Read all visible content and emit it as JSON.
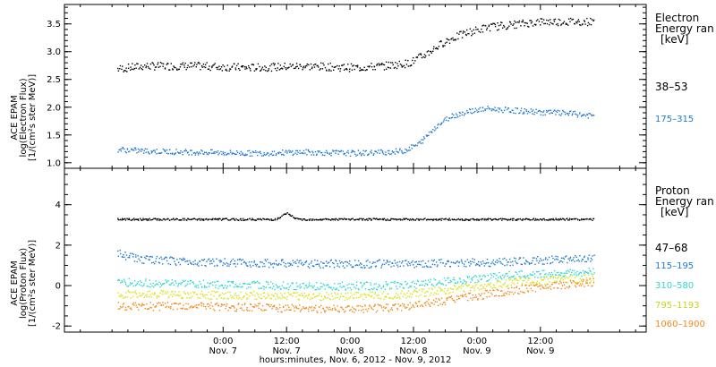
{
  "chart_data": [
    {
      "type": "scatter",
      "ylabel": [
        "ACE EPAM",
        "log(Electron Flux)",
        "[1/(cm²s ster MeV)]"
      ],
      "yticks": [
        "1.0",
        "1.5",
        "2.0",
        "2.5",
        "3.0",
        "3.5"
      ],
      "ylim": [
        0.9,
        3.85
      ],
      "legend": {
        "title": [
          "Electron",
          "Energy ran",
          "[keV]"
        ],
        "items": [
          {
            "label": "38–53",
            "color": "#000000"
          },
          {
            "label": "175–315",
            "color": "#1f77d0"
          }
        ]
      },
      "series": [
        {
          "name": "38–53",
          "color": "#000000",
          "x": [
            -20,
            -15,
            -5,
            5,
            15,
            25,
            30,
            35,
            38,
            42,
            46,
            50,
            55,
            60,
            65,
            70
          ],
          "y": [
            2.7,
            2.75,
            2.75,
            2.72,
            2.75,
            2.72,
            2.75,
            2.8,
            2.95,
            3.2,
            3.35,
            3.45,
            3.5,
            3.55,
            3.55,
            3.55
          ]
        },
        {
          "name": "175–315",
          "color": "#1f77d0",
          "x": [
            -20,
            -15,
            -5,
            5,
            15,
            25,
            30,
            34,
            37,
            40,
            43,
            47,
            50,
            55,
            60,
            65,
            70
          ],
          "y": [
            1.25,
            1.22,
            1.2,
            1.18,
            1.2,
            1.18,
            1.2,
            1.22,
            1.35,
            1.65,
            1.85,
            1.95,
            1.98,
            1.95,
            1.92,
            1.9,
            1.85
          ]
        }
      ]
    },
    {
      "type": "scatter",
      "ylabel": [
        "ACE EPAM",
        "log(Proton Flux)",
        "[1/(cm²s ster MeV)]"
      ],
      "yticks": [
        "-2",
        "0",
        "2",
        "4"
      ],
      "ylim": [
        -2.3,
        5.8
      ],
      "legend": {
        "title": [
          "Proton",
          "Energy ran",
          "[keV]"
        ],
        "items": [
          {
            "label": "47–68",
            "color": "#000000"
          },
          {
            "label": "115–195",
            "color": "#1f77d0"
          },
          {
            "label": "310–580",
            "color": "#2fd6d0"
          },
          {
            "label": "795–1193",
            "color": "#d9e21a"
          },
          {
            "label": "1060–1900",
            "color": "#f08a1c"
          }
        ]
      },
      "series": [
        {
          "name": "47–68",
          "color": "#000000",
          "x": [
            -20,
            0,
            10,
            12,
            14,
            30,
            50,
            70
          ],
          "y": [
            3.3,
            3.3,
            3.3,
            3.6,
            3.3,
            3.3,
            3.3,
            3.3
          ]
        },
        {
          "name": "115–195",
          "color": "#1f77d0",
          "x": [
            -20,
            -15,
            -5,
            5,
            15,
            25,
            35,
            45,
            55,
            65,
            70
          ],
          "y": [
            1.6,
            1.3,
            1.2,
            1.15,
            1.1,
            1.1,
            1.1,
            1.15,
            1.2,
            1.35,
            1.4
          ]
        },
        {
          "name": "310–580",
          "color": "#2fd6d0",
          "x": [
            -20,
            -15,
            -5,
            5,
            15,
            25,
            35,
            45,
            55,
            65,
            70
          ],
          "y": [
            0.2,
            0.15,
            0.1,
            0.05,
            0.0,
            0.0,
            0.05,
            0.3,
            0.55,
            0.65,
            0.7
          ]
        },
        {
          "name": "795–1193",
          "color": "#d9e21a",
          "x": [
            -20,
            -15,
            -5,
            5,
            15,
            25,
            35,
            45,
            55,
            65,
            70
          ],
          "y": [
            -0.4,
            -0.4,
            -0.45,
            -0.45,
            -0.5,
            -0.5,
            -0.4,
            -0.1,
            0.2,
            0.35,
            0.4
          ]
        },
        {
          "name": "1060–1900",
          "color": "#f08a1c",
          "x": [
            -20,
            -15,
            -5,
            5,
            15,
            25,
            35,
            45,
            55,
            65,
            70
          ],
          "y": [
            -1.0,
            -1.0,
            -1.0,
            -1.05,
            -1.1,
            -1.15,
            -1.0,
            -0.6,
            -0.2,
            0.1,
            0.2
          ]
        }
      ]
    }
  ],
  "xaxis": {
    "range_hours": [
      -30,
      80
    ],
    "ticks": [
      {
        "h": 0,
        "line1": "0:00",
        "line2": "Nov. 7"
      },
      {
        "h": 12,
        "line1": "12:00",
        "line2": "Nov. 7"
      },
      {
        "h": 24,
        "line1": "0:00",
        "line2": "Nov. 8"
      },
      {
        "h": 36,
        "line1": "12:00",
        "line2": "Nov. 8"
      },
      {
        "h": 48,
        "line1": "0:00",
        "line2": "Nov. 9"
      },
      {
        "h": 60,
        "line1": "12:00",
        "line2": "Nov. 9"
      }
    ],
    "title": "hours:minutes, Nov.  6, 2012 - Nov.  9, 2012"
  }
}
